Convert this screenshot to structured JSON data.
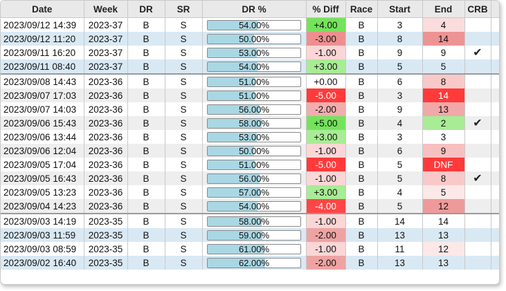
{
  "columns": [
    "Date",
    "Week",
    "DR",
    "SR",
    "DR %",
    "% Diff",
    "Race",
    "Start",
    "End",
    "CRB"
  ],
  "colors": {
    "row_alt": "#d9e9f4",
    "row_alt_gray": "#eeeeee",
    "diff_pos_strong": "#74e35c",
    "diff_pos": "#a8ec95",
    "diff_neg_weak": "#fbd6d6",
    "diff_neg": "#ee9a9a",
    "diff_neg_strong": "#ff3a3a",
    "bar_fill": "#a9d7e3"
  },
  "rows": [
    {
      "date": "2023/09/12 14:39",
      "week": "2023-37",
      "dr": "B",
      "sr": "S",
      "dr_pct": 54,
      "dr_pct_label": "54.00%",
      "diff": "+4.00",
      "race": "B",
      "start": "3",
      "end": "4",
      "crb": "",
      "bg": "#ffffff",
      "diff_bg": "#74e35c",
      "diff_color": "#111111",
      "end_bg": "#fbdcdc",
      "end_color": "#111111",
      "group_start": false
    },
    {
      "date": "2023/09/12 11:20",
      "week": "2023-37",
      "dr": "B",
      "sr": "S",
      "dr_pct": 50,
      "dr_pct_label": "50.00%",
      "diff": "-3.00",
      "race": "B",
      "start": "8",
      "end": "14",
      "crb": "",
      "bg": "#d9e9f4",
      "diff_bg": "#ee8f8f",
      "diff_color": "#111111",
      "end_bg": "#ee9393",
      "end_color": "#111111",
      "group_start": false
    },
    {
      "date": "2023/09/11 16:20",
      "week": "2023-37",
      "dr": "B",
      "sr": "S",
      "dr_pct": 53,
      "dr_pct_label": "53.00%",
      "diff": "-1.00",
      "race": "B",
      "start": "9",
      "end": "9",
      "crb": "✔",
      "bg": "#ffffff",
      "diff_bg": "#fbd6d6",
      "diff_color": "#111111",
      "end_bg": "#ffffff",
      "end_color": "#111111",
      "group_start": false
    },
    {
      "date": "2023/09/11 08:40",
      "week": "2023-37",
      "dr": "B",
      "sr": "S",
      "dr_pct": 54,
      "dr_pct_label": "54.00%",
      "diff": "+3.00",
      "race": "B",
      "start": "5",
      "end": "5",
      "crb": "",
      "bg": "#d9e9f4",
      "diff_bg": "#a8ec95",
      "diff_color": "#111111",
      "end_bg": "#d9e9f4",
      "end_color": "#111111",
      "group_start": false
    },
    {
      "date": "2023/09/08 14:43",
      "week": "2023-36",
      "dr": "B",
      "sr": "S",
      "dr_pct": 51,
      "dr_pct_label": "51.00%",
      "diff": "+0.00",
      "race": "B",
      "start": "6",
      "end": "8",
      "crb": "",
      "bg": "#ffffff",
      "diff_bg": "#ffffff",
      "diff_color": "#111111",
      "end_bg": "#f9c9c9",
      "end_color": "#111111",
      "group_start": true
    },
    {
      "date": "2023/09/07 17:03",
      "week": "2023-36",
      "dr": "B",
      "sr": "S",
      "dr_pct": 51,
      "dr_pct_label": "51.00%",
      "diff": "-5.00",
      "race": "B",
      "start": "3",
      "end": "14",
      "crb": "",
      "bg": "#eeeeee",
      "diff_bg": "#ff3a3a",
      "diff_color": "#ffffff",
      "end_bg": "#ff3a3a",
      "end_color": "#ffffff",
      "group_start": false
    },
    {
      "date": "2023/09/07 14:03",
      "week": "2023-36",
      "dr": "B",
      "sr": "S",
      "dr_pct": 56,
      "dr_pct_label": "56.00%",
      "diff": "-2.00",
      "race": "B",
      "start": "9",
      "end": "13",
      "crb": "",
      "bg": "#ffffff",
      "diff_bg": "#f2adad",
      "diff_color": "#111111",
      "end_bg": "#f2a8a8",
      "end_color": "#111111",
      "group_start": false
    },
    {
      "date": "2023/09/06 15:43",
      "week": "2023-36",
      "dr": "B",
      "sr": "S",
      "dr_pct": 58,
      "dr_pct_label": "58.00%",
      "diff": "+5.00",
      "race": "B",
      "start": "4",
      "end": "2",
      "crb": "✔",
      "bg": "#eeeeee",
      "diff_bg": "#74e35c",
      "diff_color": "#111111",
      "end_bg": "#a8ec95",
      "end_color": "#111111",
      "group_start": false
    },
    {
      "date": "2023/09/06 13:44",
      "week": "2023-36",
      "dr": "B",
      "sr": "S",
      "dr_pct": 53,
      "dr_pct_label": "53.00%",
      "diff": "+3.00",
      "race": "B",
      "start": "3",
      "end": "3",
      "crb": "",
      "bg": "#ffffff",
      "diff_bg": "#a8ec95",
      "diff_color": "#111111",
      "end_bg": "#ffffff",
      "end_color": "#111111",
      "group_start": false
    },
    {
      "date": "2023/09/06 12:04",
      "week": "2023-36",
      "dr": "B",
      "sr": "S",
      "dr_pct": 50,
      "dr_pct_label": "50.00%",
      "diff": "-1.00",
      "race": "B",
      "start": "6",
      "end": "9",
      "crb": "",
      "bg": "#eeeeee",
      "diff_bg": "#fbd6d6",
      "diff_color": "#111111",
      "end_bg": "#f7c0c0",
      "end_color": "#111111",
      "group_start": false
    },
    {
      "date": "2023/09/05 17:04",
      "week": "2023-36",
      "dr": "B",
      "sr": "S",
      "dr_pct": 51,
      "dr_pct_label": "51.00%",
      "diff": "-5.00",
      "race": "B",
      "start": "5",
      "end": "DNF",
      "crb": "",
      "bg": "#ffffff",
      "diff_bg": "#ff3a3a",
      "diff_color": "#ffffff",
      "end_bg": "#ff3a3a",
      "end_color": "#ffffff",
      "group_start": false
    },
    {
      "date": "2023/09/05 16:43",
      "week": "2023-36",
      "dr": "B",
      "sr": "S",
      "dr_pct": 56,
      "dr_pct_label": "56.00%",
      "diff": "-1.00",
      "race": "B",
      "start": "5",
      "end": "8",
      "crb": "✔",
      "bg": "#eeeeee",
      "diff_bg": "#fbd6d6",
      "diff_color": "#111111",
      "end_bg": "#f9c9c9",
      "end_color": "#111111",
      "group_start": false
    },
    {
      "date": "2023/09/05 13:23",
      "week": "2023-36",
      "dr": "B",
      "sr": "S",
      "dr_pct": 57,
      "dr_pct_label": "57.00%",
      "diff": "+3.00",
      "race": "B",
      "start": "4",
      "end": "5",
      "crb": "",
      "bg": "#ffffff",
      "diff_bg": "#a8ec95",
      "diff_color": "#111111",
      "end_bg": "#fde8e8",
      "end_color": "#111111",
      "group_start": false
    },
    {
      "date": "2023/09/04 14:23",
      "week": "2023-36",
      "dr": "B",
      "sr": "S",
      "dr_pct": 54,
      "dr_pct_label": "54.00%",
      "diff": "-4.00",
      "race": "B",
      "start": "5",
      "end": "12",
      "crb": "",
      "bg": "#eeeeee",
      "diff_bg": "#ff4646",
      "diff_color": "#ffffff",
      "end_bg": "#ee9a9a",
      "end_color": "#111111",
      "group_start": false
    },
    {
      "date": "2023/09/03 14:19",
      "week": "2023-35",
      "dr": "B",
      "sr": "S",
      "dr_pct": 58,
      "dr_pct_label": "58.00%",
      "diff": "-1.00",
      "race": "B",
      "start": "14",
      "end": "14",
      "crb": "",
      "bg": "#ffffff",
      "diff_bg": "#fbd6d6",
      "diff_color": "#111111",
      "end_bg": "#ffffff",
      "end_color": "#111111",
      "group_start": true
    },
    {
      "date": "2023/09/03 11:59",
      "week": "2023-35",
      "dr": "B",
      "sr": "S",
      "dr_pct": 59,
      "dr_pct_label": "59.00%",
      "diff": "-2.00",
      "race": "B",
      "start": "13",
      "end": "13",
      "crb": "",
      "bg": "#d9e9f4",
      "diff_bg": "#eea3a3",
      "diff_color": "#111111",
      "end_bg": "#d9e9f4",
      "end_color": "#111111",
      "group_start": false
    },
    {
      "date": "2023/09/03 08:59",
      "week": "2023-35",
      "dr": "B",
      "sr": "S",
      "dr_pct": 61,
      "dr_pct_label": "61.00%",
      "diff": "-1.00",
      "race": "B",
      "start": "11",
      "end": "12",
      "crb": "",
      "bg": "#ffffff",
      "diff_bg": "#fbd6d6",
      "diff_color": "#111111",
      "end_bg": "#fde8e8",
      "end_color": "#111111",
      "group_start": false
    },
    {
      "date": "2023/09/02 16:40",
      "week": "2023-35",
      "dr": "B",
      "sr": "S",
      "dr_pct": 62,
      "dr_pct_label": "62.00%",
      "diff": "-2.00",
      "race": "B",
      "start": "13",
      "end": "13",
      "crb": "",
      "bg": "#d9e9f4",
      "diff_bg": "#eea3a3",
      "diff_color": "#111111",
      "end_bg": "#d9e9f4",
      "end_color": "#111111",
      "group_start": false
    }
  ]
}
